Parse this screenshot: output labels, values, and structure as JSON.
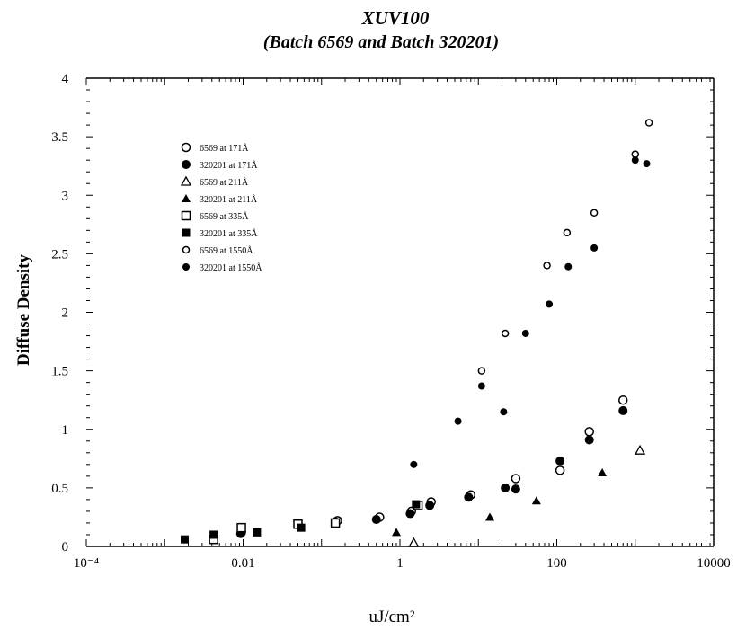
{
  "chart_data": {
    "type": "scatter",
    "title": "XUV100",
    "subtitle": "(Batch 6569 and Batch 320201)",
    "xlabel": "uJ/cm²",
    "ylabel": "Diffuse Density",
    "xscale": "log",
    "xlim": [
      0.0001,
      10000
    ],
    "ylim": [
      0,
      4
    ],
    "x_tick_labels": [
      "10⁻⁴",
      "0.01",
      "1",
      "100",
      "10000"
    ],
    "y_tick_labels": [
      "0",
      "0.5",
      "1",
      "1.5",
      "2",
      "2.5",
      "3",
      "3.5",
      "4"
    ],
    "legend_position": "top-left",
    "series": [
      {
        "name": "6569 at 171Å",
        "marker": "circle-open",
        "points": [
          [
            0.0042,
            0.07
          ],
          [
            0.0095,
            0.12
          ],
          [
            0.16,
            0.22
          ],
          [
            0.55,
            0.25
          ],
          [
            1.4,
            0.3
          ],
          [
            2.5,
            0.38
          ],
          [
            8,
            0.44
          ],
          [
            30,
            0.58
          ],
          [
            110,
            0.65
          ],
          [
            260,
            0.98
          ],
          [
            700,
            1.25
          ]
        ]
      },
      {
        "name": "320201 at 171Å",
        "marker": "circle-filled",
        "points": [
          [
            0.0042,
            0.06
          ],
          [
            0.0093,
            0.11
          ],
          [
            0.15,
            0.21
          ],
          [
            0.5,
            0.23
          ],
          [
            1.35,
            0.28
          ],
          [
            2.4,
            0.35
          ],
          [
            7.5,
            0.42
          ],
          [
            22,
            0.5
          ],
          [
            30,
            0.49
          ],
          [
            110,
            0.73
          ],
          [
            260,
            0.91
          ],
          [
            700,
            1.16
          ]
        ]
      },
      {
        "name": "6569 at 211Å",
        "marker": "triangle-open",
        "points": [
          [
            1.5,
            0.03
          ],
          [
            1150,
            0.82
          ]
        ]
      },
      {
        "name": "320201 at 211Å",
        "marker": "triangle-filled",
        "points": [
          [
            0.9,
            0.12
          ],
          [
            14,
            0.25
          ],
          [
            55,
            0.39
          ],
          [
            380,
            0.63
          ]
        ]
      },
      {
        "name": "6569 at 335Å",
        "marker": "square-open",
        "points": [
          [
            0.0042,
            0.06
          ],
          [
            0.0095,
            0.16
          ],
          [
            0.15,
            0.2
          ],
          [
            0.05,
            0.19
          ],
          [
            1.7,
            0.35
          ]
        ]
      },
      {
        "name": "320201 at 335Å",
        "marker": "square-filled",
        "points": [
          [
            0.0018,
            0.06
          ],
          [
            0.0042,
            0.1
          ],
          [
            0.015,
            0.12
          ],
          [
            0.055,
            0.16
          ],
          [
            1.6,
            0.36
          ]
        ]
      },
      {
        "name": "6569 at 1550Å",
        "marker": "circle-open-small",
        "points": [
          [
            11,
            1.5
          ],
          [
            22,
            1.82
          ],
          [
            75,
            2.4
          ],
          [
            135,
            2.68
          ],
          [
            300,
            2.85
          ],
          [
            1000,
            3.35
          ],
          [
            1500,
            3.62
          ]
        ]
      },
      {
        "name": "320201 at 1550Å",
        "marker": "circle-filled-small",
        "points": [
          [
            1.5,
            0.7
          ],
          [
            5.5,
            1.07
          ],
          [
            11,
            1.37
          ],
          [
            21,
            1.15
          ],
          [
            40,
            1.82
          ],
          [
            80,
            2.07
          ],
          [
            140,
            2.39
          ],
          [
            300,
            2.55
          ],
          [
            1000,
            3.3
          ],
          [
            1400,
            3.27
          ]
        ]
      }
    ]
  }
}
